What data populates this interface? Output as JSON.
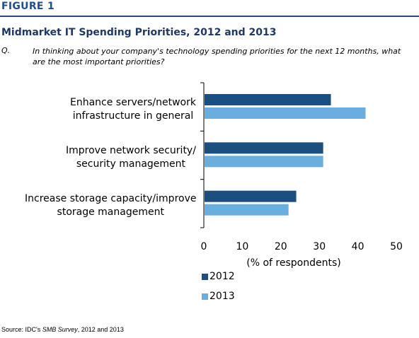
{
  "figure_label": "FIGURE 1",
  "title": "Midmarket IT Spending Priorities, 2012 and 2013",
  "question": {
    "label": "Q.",
    "text": "In thinking about your company's technology spending priorities for the next 12 months, what are the most important priorities?"
  },
  "source": {
    "prefix": "Source: IDC's ",
    "survey": "SMB Survey",
    "suffix": ", 2012 and 2013"
  },
  "chart_data": {
    "type": "bar",
    "orientation": "horizontal",
    "categories": [
      [
        "Enhance servers/network",
        "infrastructure in general"
      ],
      [
        "Improve network security/",
        "security management"
      ],
      [
        "Increase storage capacity/improve",
        "storage management"
      ]
    ],
    "series": [
      {
        "name": "2012",
        "color": "#1b4f82",
        "values": [
          33,
          31,
          24
        ]
      },
      {
        "name": "2013",
        "color": "#6aaee0",
        "values": [
          42,
          31,
          22
        ]
      }
    ],
    "xlabel": "(% of respondents)",
    "xlim": [
      0,
      50
    ],
    "xticks": [
      "0",
      "10",
      "20",
      "30",
      "40",
      "50"
    ],
    "grid": false,
    "legend_position": "bottom"
  }
}
